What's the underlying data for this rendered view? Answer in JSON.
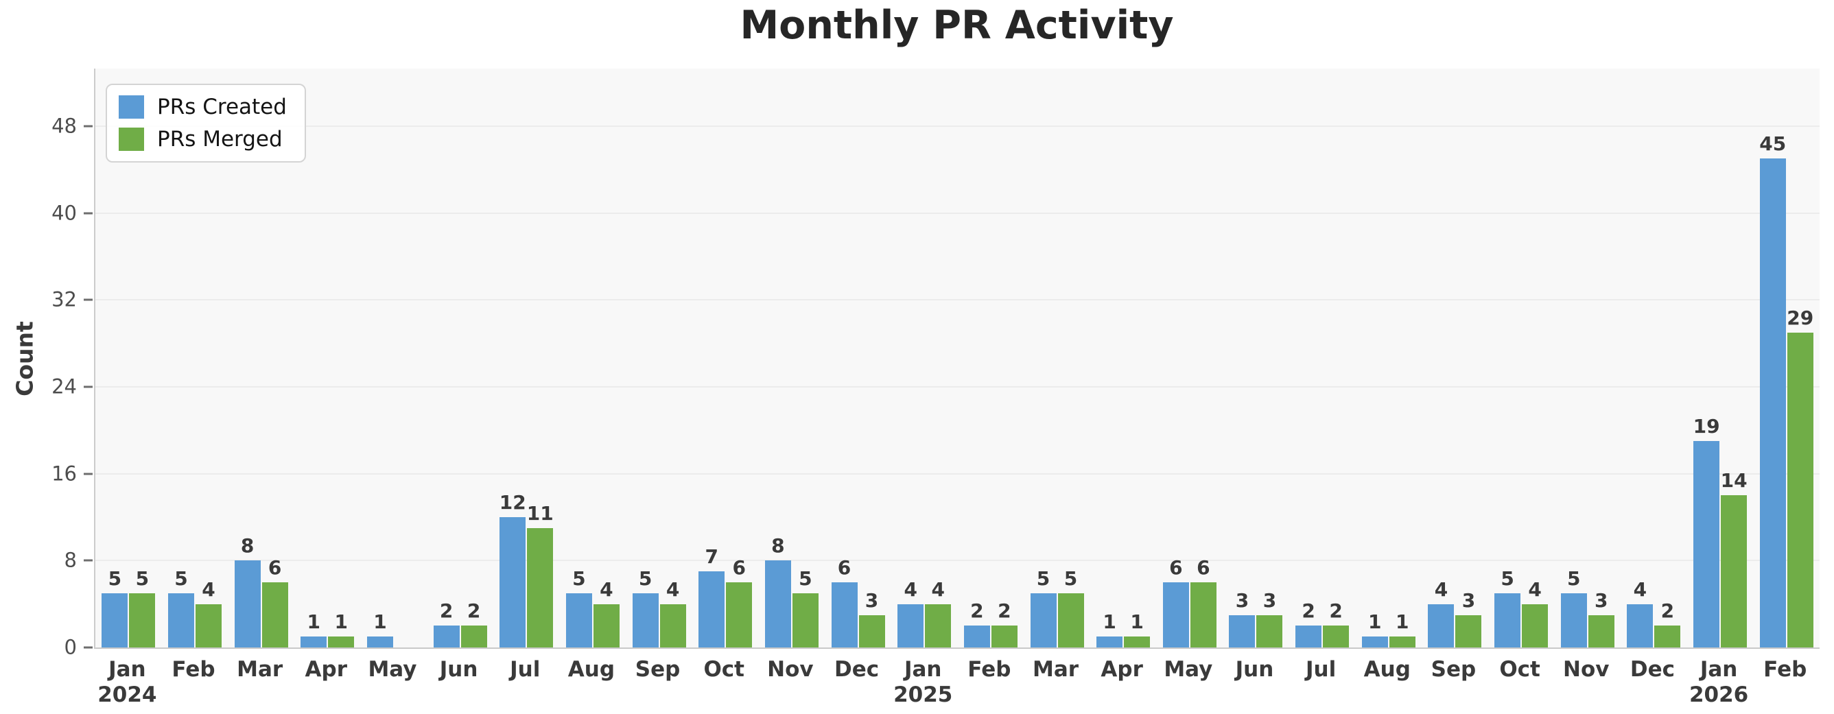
{
  "chart_data": {
    "type": "bar",
    "title": "Monthly PR Activity",
    "xlabel": "",
    "ylabel": "Count",
    "ylim": [
      0,
      53.3
    ],
    "yticks": [
      0,
      8,
      16,
      24,
      32,
      40,
      48
    ],
    "grid": true,
    "legend_position": "upper left",
    "bar_value_labels": true,
    "plot_bg": "#f8f8f8",
    "categories": [
      {
        "month": "Jan",
        "year": "2024"
      },
      {
        "month": "Feb"
      },
      {
        "month": "Mar"
      },
      {
        "month": "Apr"
      },
      {
        "month": "May"
      },
      {
        "month": "Jun"
      },
      {
        "month": "Jul"
      },
      {
        "month": "Aug"
      },
      {
        "month": "Sep"
      },
      {
        "month": "Oct"
      },
      {
        "month": "Nov"
      },
      {
        "month": "Dec"
      },
      {
        "month": "Jan",
        "year": "2025"
      },
      {
        "month": "Feb"
      },
      {
        "month": "Mar"
      },
      {
        "month": "Apr"
      },
      {
        "month": "May"
      },
      {
        "month": "Jun"
      },
      {
        "month": "Jul"
      },
      {
        "month": "Aug"
      },
      {
        "month": "Sep"
      },
      {
        "month": "Oct"
      },
      {
        "month": "Nov"
      },
      {
        "month": "Dec"
      },
      {
        "month": "Jan",
        "year": "2026"
      },
      {
        "month": "Feb"
      }
    ],
    "series": [
      {
        "name": "PRs Created",
        "color": "#5b9bd5",
        "values": [
          5,
          5,
          8,
          1,
          1,
          2,
          12,
          5,
          5,
          7,
          8,
          6,
          4,
          2,
          5,
          1,
          6,
          3,
          2,
          1,
          4,
          5,
          5,
          4,
          19,
          45
        ]
      },
      {
        "name": "PRs Merged",
        "color": "#70ad47",
        "values": [
          5,
          4,
          6,
          1,
          0,
          2,
          11,
          4,
          4,
          6,
          5,
          3,
          4,
          2,
          5,
          1,
          6,
          3,
          2,
          1,
          3,
          4,
          3,
          2,
          14,
          29
        ]
      }
    ]
  }
}
